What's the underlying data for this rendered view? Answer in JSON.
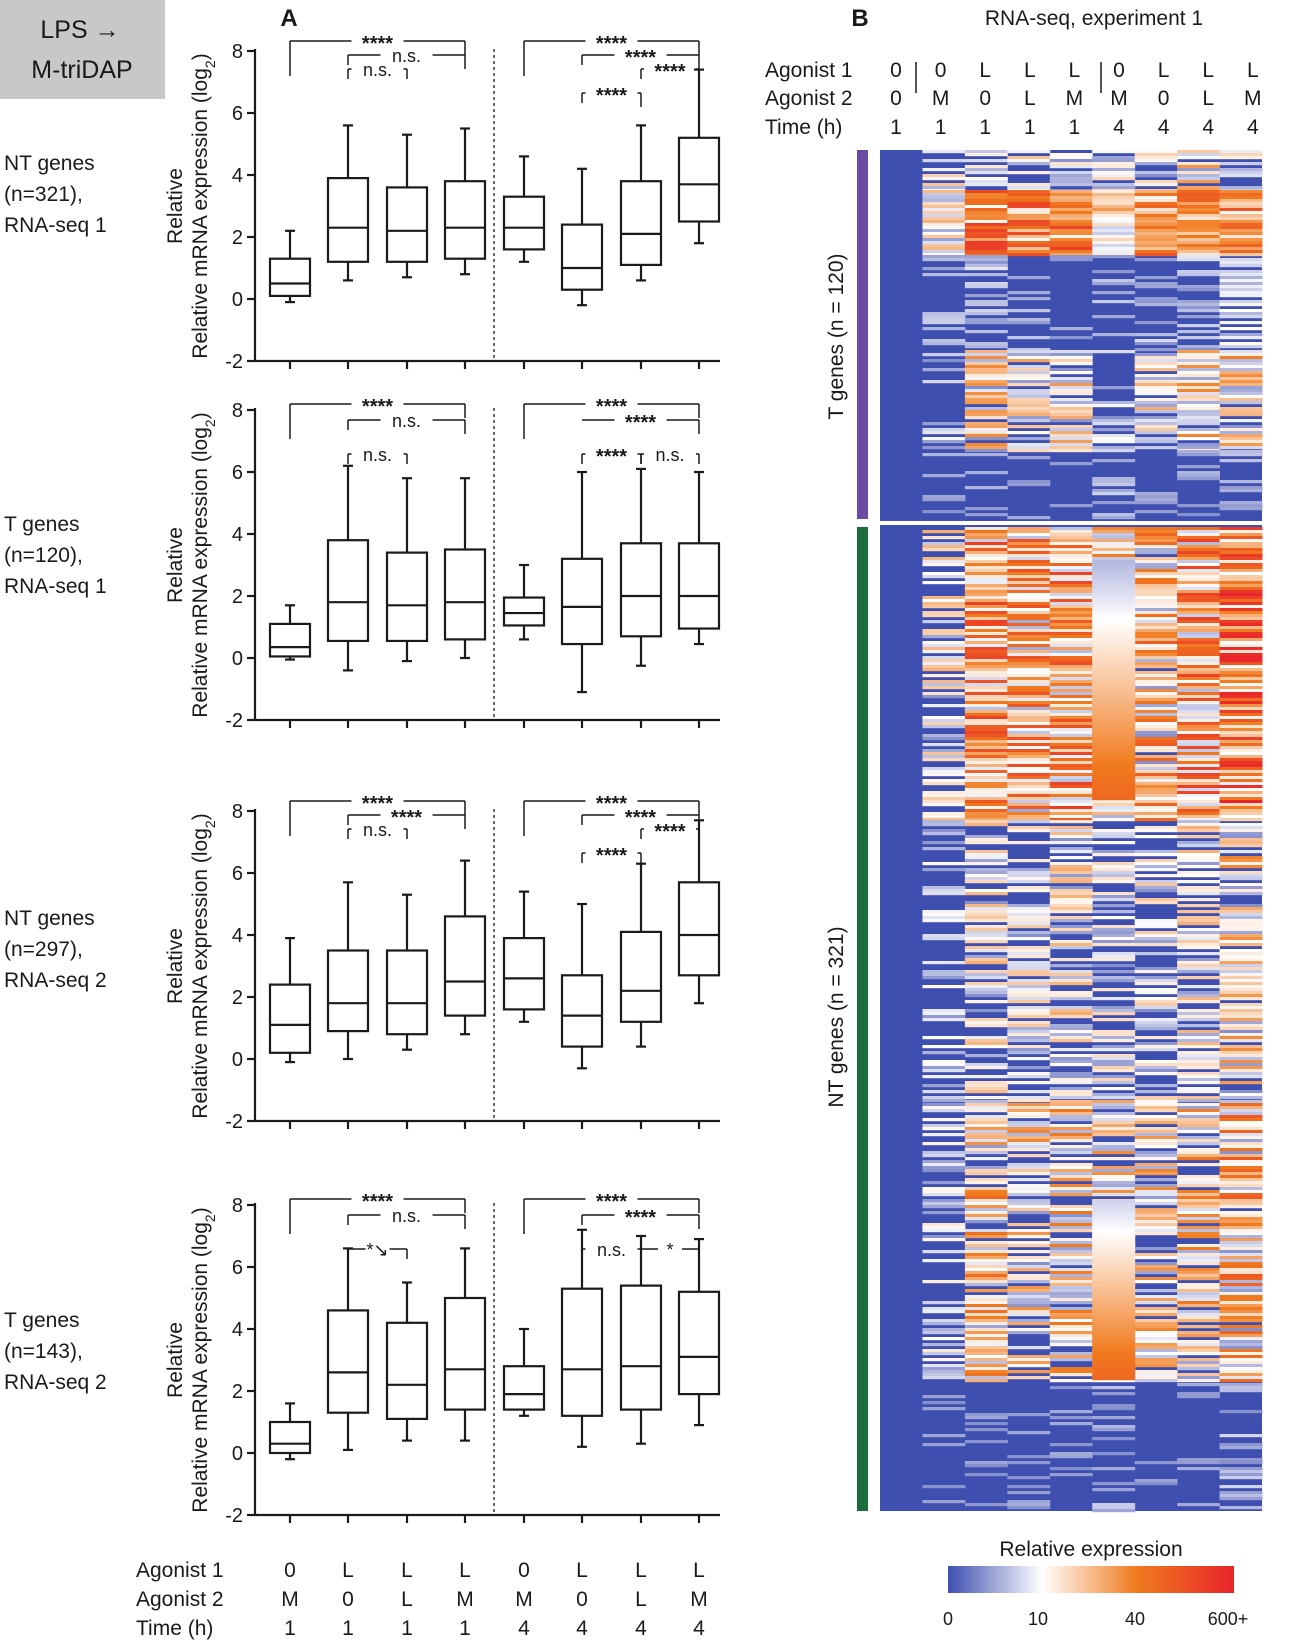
{
  "badge": {
    "line1": "LPS →",
    "line2": "M-triDAP"
  },
  "panel_a_label": "A",
  "panel_b_label": "B",
  "condition_rows": {
    "labels": [
      "Agonist 1",
      "Agonist 2",
      "Time (h)"
    ],
    "agonist1": [
      "0",
      "L",
      "L",
      "L",
      "0",
      "L",
      "L",
      "L"
    ],
    "agonist2": [
      "M",
      "0",
      "L",
      "M",
      "M",
      "0",
      "L",
      "M"
    ],
    "time": [
      "1",
      "1",
      "1",
      "1",
      "4",
      "4",
      "4",
      "4"
    ]
  },
  "chart_data": [
    {
      "type": "box",
      "id": "box1",
      "row_label": [
        "NT genes",
        "(n=321),",
        "RNA-seq 1"
      ],
      "ylabel": "Relative mRNA expression (log2)",
      "ylim": [
        -2,
        8
      ],
      "yticks": [
        "8",
        "6",
        "4",
        "2",
        "0",
        "-2"
      ],
      "categories": [
        "0/M/1",
        "L/0/1",
        "L/L/1",
        "L/M/1",
        "0/M/4",
        "L/0/4",
        "L/L/4",
        "L/M/4"
      ],
      "boxes": [
        {
          "min": -0.1,
          "q1": 0.1,
          "median": 0.5,
          "q3": 1.3,
          "max": 2.2
        },
        {
          "min": 0.6,
          "q1": 1.2,
          "median": 2.3,
          "q3": 3.9,
          "max": 5.6
        },
        {
          "min": 0.7,
          "q1": 1.2,
          "median": 2.2,
          "q3": 3.6,
          "max": 5.3
        },
        {
          "min": 0.8,
          "q1": 1.3,
          "median": 2.3,
          "q3": 3.8,
          "max": 5.5
        },
        {
          "min": 1.2,
          "q1": 1.6,
          "median": 2.3,
          "q3": 3.3,
          "max": 4.6
        },
        {
          "min": -0.2,
          "q1": 0.3,
          "median": 1.0,
          "q3": 2.4,
          "max": 4.2
        },
        {
          "min": 0.6,
          "q1": 1.1,
          "median": 2.1,
          "q3": 3.8,
          "max": 5.6
        },
        {
          "min": 1.8,
          "q1": 2.5,
          "median": 3.7,
          "q3": 5.2,
          "max": 7.4
        }
      ],
      "significance": [
        {
          "from": 1,
          "to": 4,
          "tick_from": true,
          "label": "****",
          "level": 1
        },
        {
          "from": 2,
          "to": 4,
          "tick_from": true,
          "label": "n.s.",
          "level": 2
        },
        {
          "from": 2,
          "to": 3,
          "tick_from": true,
          "label": "n.s.",
          "level": 3
        },
        {
          "from": 5,
          "to": 8,
          "tick_from": true,
          "label": "****",
          "level": 1
        },
        {
          "from": 6,
          "to": 8,
          "tick_from": true,
          "label": "****",
          "level": 2
        },
        {
          "from": 7,
          "to": 8,
          "tick_from": true,
          "label": "****",
          "level": 3
        },
        {
          "from": 6,
          "to": 7,
          "tick_from": true,
          "label": "****",
          "level": 4
        }
      ]
    },
    {
      "type": "box",
      "id": "box2",
      "row_label": [
        "T genes",
        "(n=120),",
        "RNA-seq 1"
      ],
      "ylabel": "Relative mRNA expression (log2)",
      "ylim": [
        -2,
        8
      ],
      "yticks": [
        "8",
        "6",
        "4",
        "2",
        "0",
        "-2"
      ],
      "categories": [
        "0/M/1",
        "L/0/1",
        "L/L/1",
        "L/M/1",
        "0/M/4",
        "L/0/4",
        "L/L/4",
        "L/M/4"
      ],
      "boxes": [
        {
          "min": -0.05,
          "q1": 0.05,
          "median": 0.35,
          "q3": 1.1,
          "max": 1.7
        },
        {
          "min": -0.4,
          "q1": 0.55,
          "median": 1.8,
          "q3": 3.8,
          "max": 6.2
        },
        {
          "min": -0.1,
          "q1": 0.55,
          "median": 1.7,
          "q3": 3.4,
          "max": 5.8
        },
        {
          "min": 0.0,
          "q1": 0.6,
          "median": 1.8,
          "q3": 3.5,
          "max": 5.8
        },
        {
          "min": 0.6,
          "q1": 1.05,
          "median": 1.45,
          "q3": 1.95,
          "max": 3.0
        },
        {
          "min": -1.1,
          "q1": 0.45,
          "median": 1.65,
          "q3": 3.2,
          "max": 6.0
        },
        {
          "min": -0.25,
          "q1": 0.7,
          "median": 2.0,
          "q3": 3.7,
          "max": 6.1
        },
        {
          "min": 0.45,
          "q1": 0.95,
          "median": 2.0,
          "q3": 3.7,
          "max": 6.0
        }
      ],
      "significance": [
        {
          "from": 1,
          "to": 4,
          "tick_from": true,
          "label": "****",
          "level": 1
        },
        {
          "from": 2,
          "to": 4,
          "tick_from": true,
          "label": "n.s.",
          "level": 2
        },
        {
          "from": 2,
          "to": 3,
          "tick_from": true,
          "label": "n.s.",
          "level": 3
        },
        {
          "from": 5,
          "to": 8,
          "tick_from": true,
          "label": "****",
          "level": 1
        },
        {
          "from": 6,
          "to": 8,
          "tick_from": false,
          "label": "****",
          "level": 2
        },
        {
          "from": 6,
          "to": 7,
          "tick_from": true,
          "label": "****",
          "level": 3
        },
        {
          "from": 7,
          "to": 8,
          "tick_from": true,
          "label": "n.s.",
          "level": 3
        }
      ]
    },
    {
      "type": "box",
      "id": "box3",
      "row_label": [
        "NT genes",
        "(n=297),",
        "RNA-seq 2"
      ],
      "ylabel": "Relative mRNA expression (log2)",
      "ylim": [
        -2,
        8
      ],
      "yticks": [
        "8",
        "6",
        "4",
        "2",
        "0",
        "-2"
      ],
      "categories": [
        "0/M/1",
        "L/0/1",
        "L/L/1",
        "L/M/1",
        "0/M/4",
        "L/0/4",
        "L/L/4",
        "L/M/4"
      ],
      "boxes": [
        {
          "min": -0.1,
          "q1": 0.2,
          "median": 1.1,
          "q3": 2.4,
          "max": 3.9
        },
        {
          "min": 0.0,
          "q1": 0.9,
          "median": 1.8,
          "q3": 3.5,
          "max": 5.7
        },
        {
          "min": 0.3,
          "q1": 0.8,
          "median": 1.8,
          "q3": 3.5,
          "max": 5.3
        },
        {
          "min": 0.8,
          "q1": 1.4,
          "median": 2.5,
          "q3": 4.6,
          "max": 6.4
        },
        {
          "min": 1.2,
          "q1": 1.6,
          "median": 2.6,
          "q3": 3.9,
          "max": 5.4
        },
        {
          "min": -0.3,
          "q1": 0.4,
          "median": 1.4,
          "q3": 2.7,
          "max": 5.0
        },
        {
          "min": 0.4,
          "q1": 1.2,
          "median": 2.2,
          "q3": 4.1,
          "max": 6.3
        },
        {
          "min": 1.8,
          "q1": 2.7,
          "median": 4.0,
          "q3": 5.7,
          "max": 7.7
        }
      ],
      "significance": [
        {
          "from": 1,
          "to": 4,
          "tick_from": true,
          "label": "****",
          "level": 1
        },
        {
          "from": 2,
          "to": 4,
          "tick_from": true,
          "label": "****",
          "level": 2
        },
        {
          "from": 2,
          "to": 3,
          "tick_from": true,
          "label": "n.s.",
          "level": 3
        },
        {
          "from": 5,
          "to": 8,
          "tick_from": true,
          "label": "****",
          "level": 1
        },
        {
          "from": 6,
          "to": 8,
          "tick_from": true,
          "label": "****",
          "level": 2
        },
        {
          "from": 7,
          "to": 8,
          "tick_from": true,
          "label": "****",
          "level": 3
        },
        {
          "from": 6,
          "to": 7,
          "tick_from": true,
          "label": "****",
          "level": 4
        }
      ]
    },
    {
      "type": "box",
      "id": "box4",
      "row_label": [
        "T genes",
        "(n=143),",
        "RNA-seq 2"
      ],
      "ylabel": "Relative mRNA expression (log2)",
      "ylim": [
        -2,
        8
      ],
      "yticks": [
        "8",
        "6",
        "4",
        "2",
        "0",
        "-2"
      ],
      "categories": [
        "0/M/1",
        "L/0/1",
        "L/L/1",
        "L/M/1",
        "0/M/4",
        "L/0/4",
        "L/L/4",
        "L/M/4"
      ],
      "boxes": [
        {
          "min": -0.2,
          "q1": 0.0,
          "median": 0.3,
          "q3": 1.0,
          "max": 1.6
        },
        {
          "min": 0.1,
          "q1": 1.3,
          "median": 2.6,
          "q3": 4.6,
          "max": 6.6
        },
        {
          "min": 0.4,
          "q1": 1.1,
          "median": 2.2,
          "q3": 4.2,
          "max": 5.5
        },
        {
          "min": 0.4,
          "q1": 1.4,
          "median": 2.7,
          "q3": 5.0,
          "max": 6.6
        },
        {
          "min": 1.2,
          "q1": 1.4,
          "median": 1.9,
          "q3": 2.8,
          "max": 4.0
        },
        {
          "min": 0.2,
          "q1": 1.2,
          "median": 2.7,
          "q3": 5.3,
          "max": 7.2
        },
        {
          "min": 0.3,
          "q1": 1.4,
          "median": 2.8,
          "q3": 5.4,
          "max": 7.0
        },
        {
          "min": 0.9,
          "q1": 1.9,
          "median": 3.1,
          "q3": 5.2,
          "max": 6.9
        }
      ],
      "significance": [
        {
          "from": 1,
          "to": 4,
          "tick_from": true,
          "label": "****",
          "level": 1
        },
        {
          "from": 2,
          "to": 4,
          "tick_from": true,
          "label": "n.s.",
          "level": 2
        },
        {
          "from": 2,
          "to": 3,
          "tick_from": true,
          "label": "*↘",
          "level": 3
        },
        {
          "from": 5,
          "to": 8,
          "tick_from": true,
          "label": "****",
          "level": 1
        },
        {
          "from": 6,
          "to": 8,
          "tick_from": true,
          "label": "****",
          "level": 2
        },
        {
          "from": 6,
          "to": 7,
          "tick_from": true,
          "label": "n.s.",
          "level": 3
        },
        {
          "from": 7,
          "to": 8,
          "tick_from": false,
          "label": "*",
          "level": 3
        }
      ]
    },
    {
      "type": "heatmap",
      "id": "heatmap",
      "title": "RNA-seq, experiment 1",
      "header_labels": [
        "Agonist 1",
        "Agonist 2",
        "Time (h)"
      ],
      "columns": [
        {
          "agonist1": "0",
          "agonist2": "0",
          "time": "1"
        },
        {
          "agonist1": "0",
          "agonist2": "M",
          "time": "1"
        },
        {
          "agonist1": "L",
          "agonist2": "0",
          "time": "1"
        },
        {
          "agonist1": "L",
          "agonist2": "L",
          "time": "1"
        },
        {
          "agonist1": "L",
          "agonist2": "M",
          "time": "1"
        },
        {
          "agonist1": "0",
          "agonist2": "M",
          "time": "4"
        },
        {
          "agonist1": "L",
          "agonist2": "0",
          "time": "4"
        },
        {
          "agonist1": "L",
          "agonist2": "L",
          "time": "4"
        },
        {
          "agonist1": "L",
          "agonist2": "M",
          "time": "4"
        }
      ],
      "groups": [
        {
          "label": "T genes (n = 120)",
          "n": 120,
          "color": "#6b4aa3"
        },
        {
          "label": "NT genes (n = 321)",
          "n": 321,
          "color": "#1e6b3c"
        }
      ],
      "colorbar": {
        "title": "Relative expression",
        "tick_labels": [
          "0",
          "10",
          "40",
          "600+"
        ],
        "colors": [
          "#3f4fb0",
          "#ffffff",
          "#f07b1e",
          "#e8242b"
        ]
      }
    }
  ]
}
